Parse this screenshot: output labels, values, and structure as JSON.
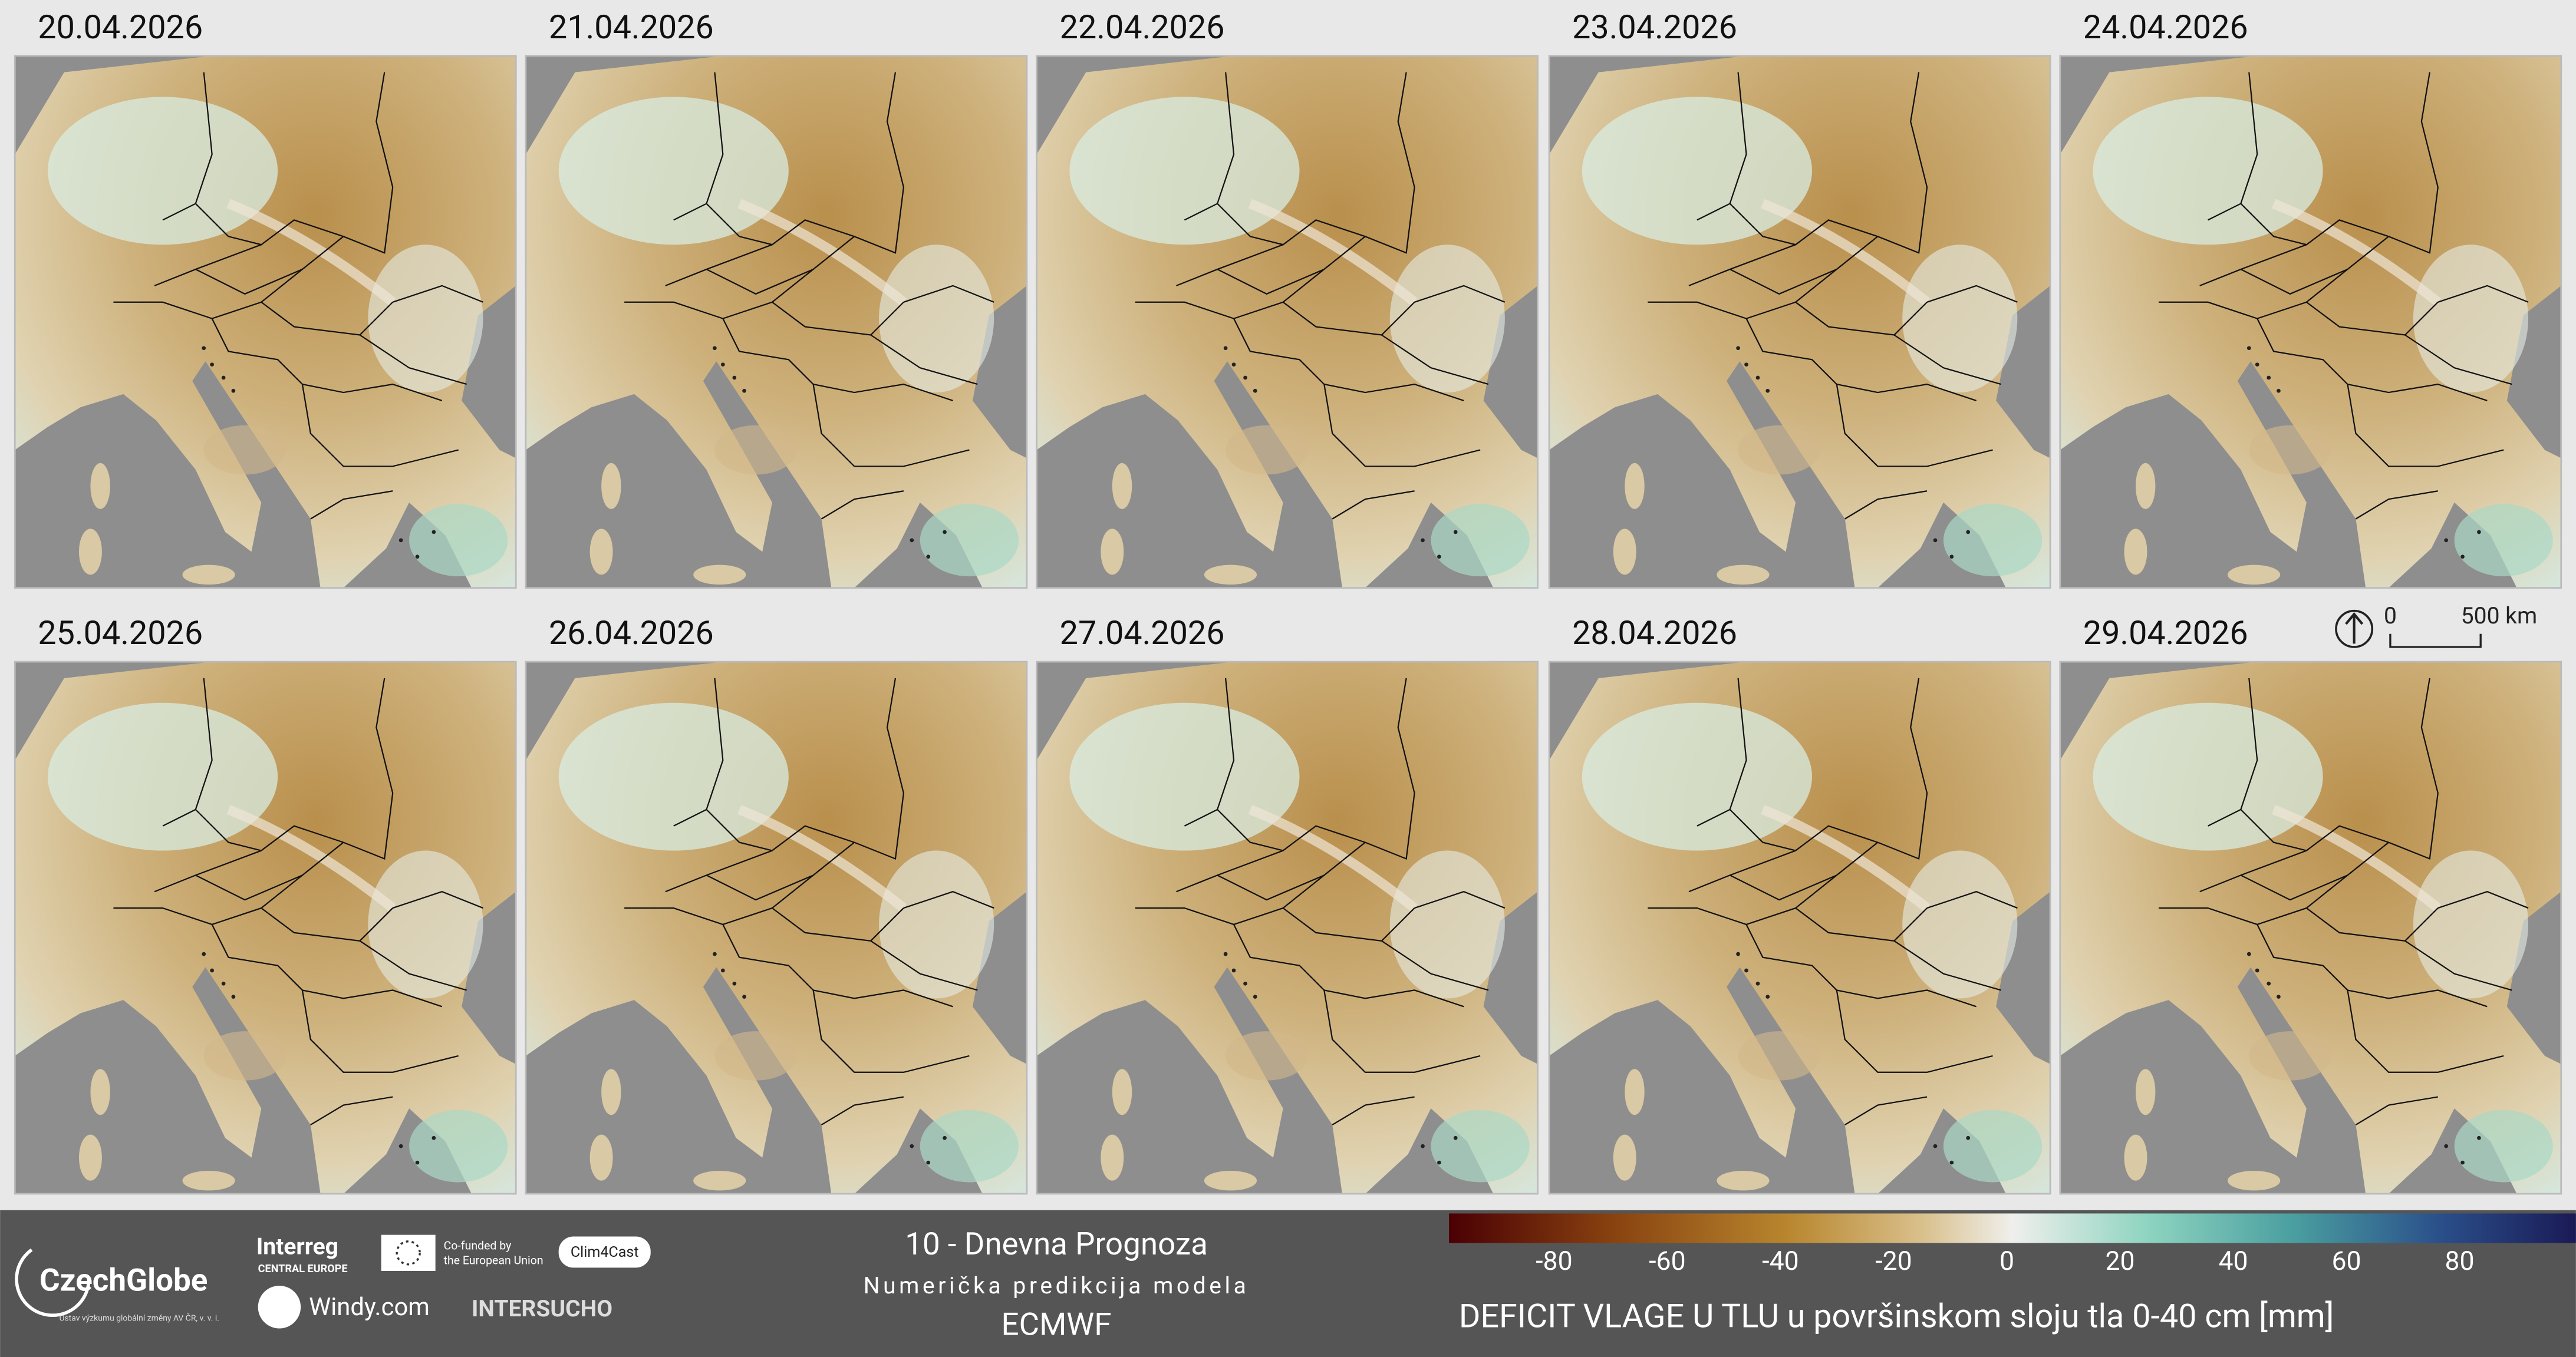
{
  "panels": [
    {
      "date": "20.04.2026"
    },
    {
      "date": "21.04.2026"
    },
    {
      "date": "22.04.2026"
    },
    {
      "date": "23.04.2026"
    },
    {
      "date": "24.04.2026"
    },
    {
      "date": "25.04.2026"
    },
    {
      "date": "26.04.2026"
    },
    {
      "date": "27.04.2026"
    },
    {
      "date": "28.04.2026"
    },
    {
      "date": "29.04.2026"
    }
  ],
  "scale_bar": {
    "start": "0",
    "end": "500 km"
  },
  "logos": {
    "czechglobe": "CzechGlobe",
    "czechglobe_sub": "Ústav výzkumu globální změny AV ČR, v. v. i.",
    "interreg": "Interreg",
    "interreg_sub": "CENTRAL EUROPE",
    "eu_line1": "Co-funded by",
    "eu_line2": "the European Union",
    "clim4cast": "Clim4Cast",
    "windy": "Windy.com",
    "intersucho": "INTERSUCHO"
  },
  "footer": {
    "title": "10 - Dnevna Prognoza",
    "subtitle": "Numerička predikcija modela",
    "model": "ECMWF"
  },
  "legend": {
    "ticks": [
      -80,
      -60,
      -40,
      -20,
      0,
      20,
      40,
      60,
      80
    ],
    "title": "DEFICIT VLAGE U TLU u površinskom sloju tla 0-40 cm [mm]"
  }
}
